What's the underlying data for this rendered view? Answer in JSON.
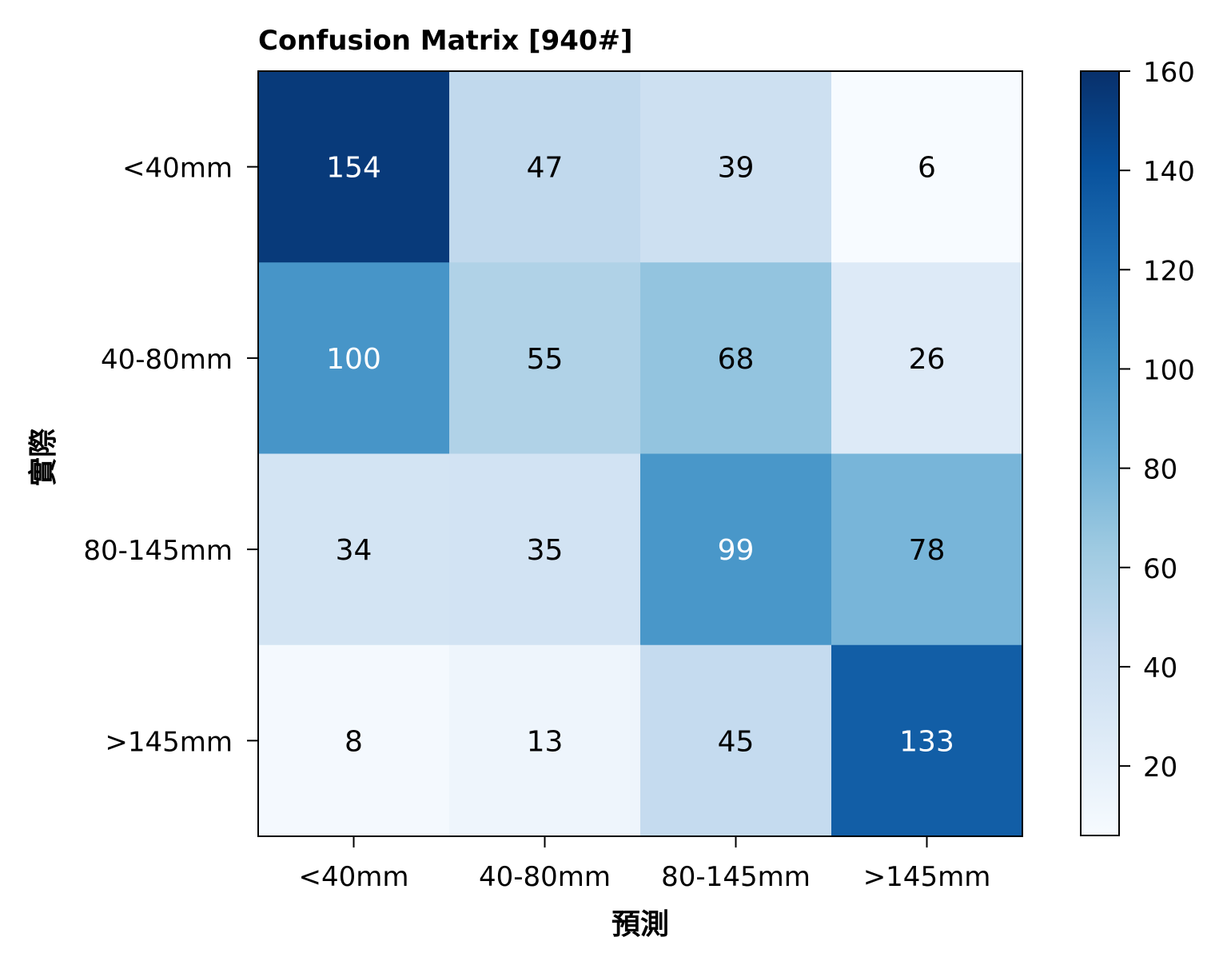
{
  "chart_data": {
    "type": "heatmap",
    "title": "Confusion Matrix [940#]",
    "xlabel": "預測",
    "ylabel": "實際",
    "x_categories": [
      "<40mm",
      "40-80mm",
      "80-145mm",
      ">145mm"
    ],
    "y_categories": [
      "<40mm",
      "40-80mm",
      "80-145mm",
      ">145mm"
    ],
    "values": [
      [
        154,
        47,
        39,
        6
      ],
      [
        100,
        55,
        68,
        26
      ],
      [
        34,
        35,
        99,
        78
      ],
      [
        8,
        13,
        45,
        133
      ]
    ],
    "colorbar": {
      "min": 6,
      "max": 160,
      "ticks": [
        20,
        40,
        60,
        80,
        100,
        120,
        140,
        160
      ],
      "colormap": "Blues"
    }
  }
}
